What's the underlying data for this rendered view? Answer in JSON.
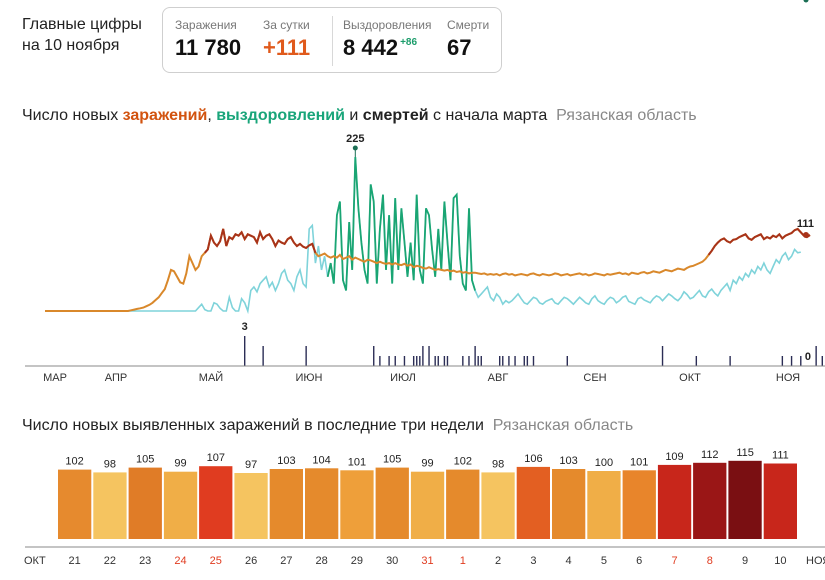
{
  "header": {
    "title_line1": "Главные цифры",
    "title_line2": "на 10 ноября"
  },
  "stats": {
    "infections_label": "Заражения",
    "infections_value": "11 780",
    "day_label": "За сутки",
    "day_value": "+111",
    "recoveries_label": "Выздоровления",
    "recoveries_value": "8 442",
    "recoveries_delta": "+86",
    "deaths_label": "Смерти",
    "deaths_value": "67"
  },
  "chart1": {
    "title_part1": "Число новых ",
    "title_infections": "заражений",
    "title_comma": ", ",
    "title_recoveries": "выздоровлений",
    "title_and": " и ",
    "title_deaths": "смертей",
    "title_rest": " с начала марта",
    "region": "Рязанская область"
  },
  "chart2": {
    "title": "Число новых выявленных заражений в последние три недели",
    "region": "Рязанская область"
  },
  "colors": {
    "infections_orange": "#d9882b",
    "infections_red": "#a8331a",
    "recoveries_light": "#7fd3da",
    "recoveries_green": "#1aa573",
    "deaths": "#2b2d55",
    "accent_red": "#e03c20",
    "green_text": "#1a9c6a"
  },
  "chart_data": [
    {
      "type": "line",
      "x_axis_months": [
        "МАР",
        "АПР",
        "МАЙ",
        "ИЮН",
        "ИЮЛ",
        "АВГ",
        "СЕН",
        "ОКТ",
        "НОЯ"
      ],
      "annotations": {
        "peak_recoveries": "225",
        "last_infections": "111",
        "last_recoveries": "86",
        "max_deaths": "3",
        "last_deaths": "0"
      },
      "ylim": [
        0,
        225
      ],
      "series": [
        {
          "key": "infections",
          "values": [
            0,
            0,
            0,
            0,
            0,
            0,
            0,
            0,
            0,
            0,
            0,
            0,
            0,
            0,
            0,
            0,
            0,
            0,
            0,
            0,
            0,
            0,
            0,
            0,
            0,
            0,
            0,
            0,
            1,
            2,
            3,
            4,
            5,
            7,
            9,
            12,
            16,
            20,
            26,
            32,
            45,
            60,
            58,
            50,
            42,
            40,
            55,
            80,
            70,
            60,
            65,
            80,
            85,
            90,
            110,
            100,
            95,
            102,
            120,
            95,
            108,
            105,
            112,
            110,
            115,
            105,
            112,
            110,
            108,
            100,
            115,
            105,
            110,
            112,
            105,
            95,
            103,
            100,
            98,
            105,
            108,
            100,
            95,
            98,
            94,
            92,
            96,
            98,
            85,
            80,
            82,
            84,
            80,
            78,
            80,
            78,
            82,
            76,
            78,
            80,
            75,
            78,
            76,
            74,
            72,
            75,
            74,
            72,
            70,
            72,
            70,
            69,
            70,
            68,
            70,
            68,
            67,
            69,
            66,
            68,
            64,
            66,
            65,
            63,
            62,
            64,
            62,
            60,
            61,
            60,
            59,
            60,
            58,
            59,
            57,
            58,
            56,
            57,
            55,
            56,
            56,
            55,
            54,
            55,
            53,
            54,
            53,
            54,
            52,
            54,
            55,
            53,
            54,
            52,
            53,
            54,
            53,
            52,
            54,
            55,
            53,
            52,
            54,
            53,
            52,
            53,
            55,
            54,
            52,
            53,
            54,
            52,
            53,
            54,
            55,
            53,
            54,
            52,
            53,
            55,
            54,
            53,
            52,
            54,
            53,
            54,
            55,
            56,
            54,
            55,
            53,
            56,
            55,
            54,
            56,
            57,
            55,
            56,
            58,
            57,
            56,
            58,
            60,
            59,
            58,
            60,
            62,
            61,
            60,
            63,
            65,
            66,
            68,
            70,
            72,
            76,
            82,
            88,
            95,
            100,
            104,
            106,
            102,
            100,
            104,
            105,
            108,
            110,
            112,
            106,
            104,
            108,
            110,
            112,
            105,
            108,
            106,
            110,
            108,
            112,
            106,
            110,
            112,
            114,
            118,
            120,
            115,
            110,
            108,
            111
          ]
        },
        {
          "key": "recoveries",
          "values": [
            0,
            0,
            0,
            0,
            0,
            0,
            0,
            0,
            0,
            0,
            0,
            0,
            0,
            0,
            0,
            0,
            0,
            0,
            0,
            0,
            0,
            0,
            0,
            0,
            0,
            0,
            0,
            0,
            0,
            0,
            0,
            0,
            0,
            0,
            0,
            0,
            0,
            0,
            0,
            0,
            0,
            0,
            0,
            0,
            0,
            0,
            0,
            0,
            0,
            0,
            5,
            10,
            2,
            0,
            0,
            12,
            10,
            4,
            0,
            0,
            20,
            5,
            0,
            0,
            18,
            12,
            0,
            30,
            35,
            28,
            40,
            45,
            50,
            35,
            42,
            30,
            40,
            55,
            60,
            45,
            40,
            30,
            50,
            60,
            40,
            35,
            120,
            125,
            70,
            95,
            60,
            80,
            50,
            70,
            40,
            140,
            160,
            45,
            30,
            130,
            60,
            225,
            150,
            100,
            60,
            40,
            185,
            160,
            40,
            120,
            170,
            60,
            140,
            40,
            165,
            60,
            150,
            100,
            50,
            100,
            45,
            170,
            60,
            40,
            150,
            140,
            90,
            50,
            120,
            60,
            160,
            100,
            45,
            165,
            170,
            80,
            40,
            30,
            150,
            45,
            30,
            20,
            25,
            30,
            35,
            20,
            15,
            25,
            20,
            10,
            15,
            12,
            15,
            20,
            25,
            18,
            12,
            10,
            15,
            20,
            18,
            12,
            10,
            14,
            16,
            18,
            12,
            10,
            15,
            20,
            18,
            14,
            10,
            15,
            20,
            16,
            12,
            10,
            18,
            22,
            15,
            12,
            10,
            16,
            20,
            18,
            12,
            15,
            20,
            22,
            14,
            12,
            10,
            18,
            20,
            16,
            14,
            12,
            18,
            22,
            20,
            15,
            20,
            25,
            22,
            18,
            15,
            20,
            28,
            24,
            18,
            20,
            25,
            30,
            22,
            20,
            28,
            32,
            26,
            22,
            30,
            35,
            40,
            30,
            45,
            40,
            50,
            45,
            55,
            50,
            60,
            55,
            65,
            60,
            70,
            60,
            55,
            65,
            75,
            70,
            80,
            85,
            75,
            80,
            90,
            85,
            86
          ]
        },
        {
          "key": "deaths",
          "values": [
            0,
            0,
            0,
            0,
            0,
            0,
            0,
            0,
            0,
            0,
            0,
            0,
            0,
            0,
            0,
            0,
            0,
            0,
            0,
            0,
            0,
            0,
            0,
            0,
            0,
            0,
            0,
            0,
            0,
            0,
            0,
            0,
            0,
            0,
            0,
            0,
            0,
            0,
            0,
            0,
            0,
            0,
            0,
            0,
            0,
            0,
            0,
            0,
            0,
            0,
            0,
            0,
            0,
            0,
            0,
            0,
            0,
            0,
            0,
            0,
            0,
            0,
            0,
            0,
            0,
            3,
            0,
            0,
            0,
            0,
            0,
            2,
            0,
            0,
            0,
            0,
            0,
            0,
            0,
            0,
            0,
            0,
            0,
            0,
            0,
            2,
            0,
            0,
            0,
            0,
            0,
            0,
            0,
            0,
            0,
            0,
            0,
            0,
            0,
            0,
            0,
            0,
            0,
            0,
            0,
            0,
            0,
            2,
            0,
            1,
            0,
            0,
            1,
            0,
            1,
            0,
            0,
            1,
            0,
            0,
            1,
            1,
            1,
            2,
            0,
            2,
            0,
            1,
            1,
            0,
            1,
            1,
            0,
            0,
            0,
            0,
            1,
            0,
            1,
            0,
            2,
            1,
            1,
            0,
            0,
            0,
            0,
            0,
            1,
            1,
            0,
            1,
            0,
            1,
            0,
            0,
            1,
            1,
            0,
            1,
            0,
            0,
            0,
            0,
            0,
            0,
            0,
            0,
            0,
            0,
            1,
            0,
            0,
            0,
            0,
            0,
            0,
            0,
            0,
            0,
            0,
            0,
            0,
            0,
            0,
            0,
            0,
            0,
            0,
            0,
            0,
            0,
            0,
            0,
            0,
            0,
            0,
            0,
            0,
            0,
            0,
            2,
            0,
            0,
            0,
            0,
            0,
            0,
            0,
            0,
            0,
            0,
            1,
            0,
            0,
            0,
            0,
            0,
            0,
            0,
            0,
            0,
            0,
            1,
            0,
            0,
            0,
            0,
            0,
            0,
            0,
            0,
            0,
            0,
            0,
            0,
            0,
            0,
            0,
            0,
            1,
            0,
            0,
            1,
            0,
            0,
            1,
            0,
            0,
            0,
            0,
            2,
            0,
            1,
            0,
            0,
            1,
            0,
            0,
            0,
            1,
            0,
            0,
            0
          ]
        }
      ]
    },
    {
      "type": "bar",
      "month_left": "ОКТ",
      "month_right": "НОЯ",
      "categories": [
        "21",
        "22",
        "23",
        "24",
        "25",
        "26",
        "27",
        "28",
        "29",
        "30",
        "31",
        "1",
        "2",
        "3",
        "4",
        "5",
        "6",
        "7",
        "8",
        "9",
        "10"
      ],
      "values": [
        102,
        98,
        105,
        99,
        107,
        97,
        103,
        104,
        101,
        105,
        99,
        102,
        98,
        106,
        103,
        100,
        101,
        109,
        112,
        115,
        111
      ],
      "bar_colors": [
        "#e68a2e",
        "#f5c460",
        "#e07c27",
        "#f0ae47",
        "#e03c20",
        "#f5c460",
        "#e58a2c",
        "#e58a2c",
        "#ee9f3a",
        "#e58a2c",
        "#f0ae47",
        "#e58a2c",
        "#f5c460",
        "#e35f22",
        "#e58a2c",
        "#f0ae47",
        "#e8852b",
        "#c8261b",
        "#9a1616",
        "#7a0f12",
        "#c8261b"
      ],
      "label_colors": [
        "#333",
        "#333",
        "#333",
        "#e03c20",
        "#e03c20",
        "#333",
        "#333",
        "#333",
        "#333",
        "#333",
        "#e03c20",
        "#e03c20",
        "#333",
        "#333",
        "#333",
        "#333",
        "#333",
        "#e03c20",
        "#e03c20",
        "#333",
        "#333"
      ]
    }
  ]
}
